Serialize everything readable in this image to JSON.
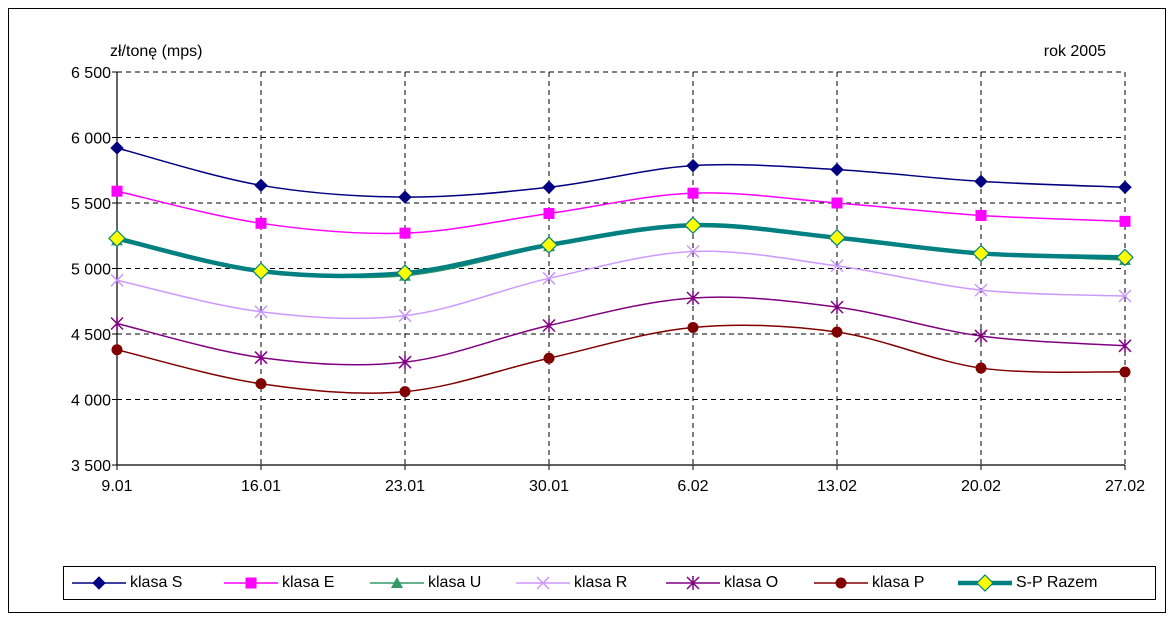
{
  "chart_data": {
    "type": "line",
    "ylabel": "zł/tonę (mps)",
    "annotation": "rok 2005",
    "categories": [
      "9.01",
      "16.01",
      "23.01",
      "30.01",
      "6.02",
      "13.02",
      "20.02",
      "27.02"
    ],
    "ylim": [
      3500,
      6500
    ],
    "yticks": [
      3500,
      4000,
      4500,
      5000,
      5500,
      6000,
      6500
    ],
    "ytick_labels": [
      "3 500",
      "4 000",
      "4 500",
      "5 000",
      "5 500",
      "6 000",
      "6 500"
    ],
    "grid": true,
    "legend_position": "bottom",
    "series": [
      {
        "name": "klasa S",
        "values": [
          5920,
          5635,
          5545,
          5620,
          5785,
          5755,
          5665,
          5620
        ],
        "color": "#000080",
        "marker": "diamond",
        "thick": false
      },
      {
        "name": "klasa E",
        "values": [
          5590,
          5345,
          5270,
          5420,
          5575,
          5500,
          5405,
          5360
        ],
        "color": "#FF00FF",
        "marker": "square",
        "thick": false
      },
      {
        "name": "klasa U",
        "values": [
          5215,
          4985,
          4945,
          5170,
          5340,
          5240,
          5115,
          5065
        ],
        "color": "#339966",
        "marker": "triangle",
        "thick": false
      },
      {
        "name": "klasa R",
        "values": [
          4910,
          4670,
          4640,
          4925,
          5130,
          5020,
          4835,
          4790
        ],
        "color": "#CC99FF",
        "marker": "x",
        "thick": false
      },
      {
        "name": "klasa O",
        "values": [
          4580,
          4320,
          4285,
          4565,
          4775,
          4705,
          4485,
          4410
        ],
        "color": "#800080",
        "marker": "asterisk",
        "thick": false
      },
      {
        "name": "klasa P",
        "values": [
          4380,
          4120,
          4060,
          4315,
          4550,
          4515,
          4240,
          4210
        ],
        "color": "#800000",
        "marker": "circle",
        "thick": false
      },
      {
        "name": "S-P Razem",
        "values": [
          5230,
          4980,
          4965,
          5180,
          5330,
          5235,
          5115,
          5085
        ],
        "color": "#008080",
        "marker": "diamond-yellow",
        "thick": true
      }
    ]
  }
}
